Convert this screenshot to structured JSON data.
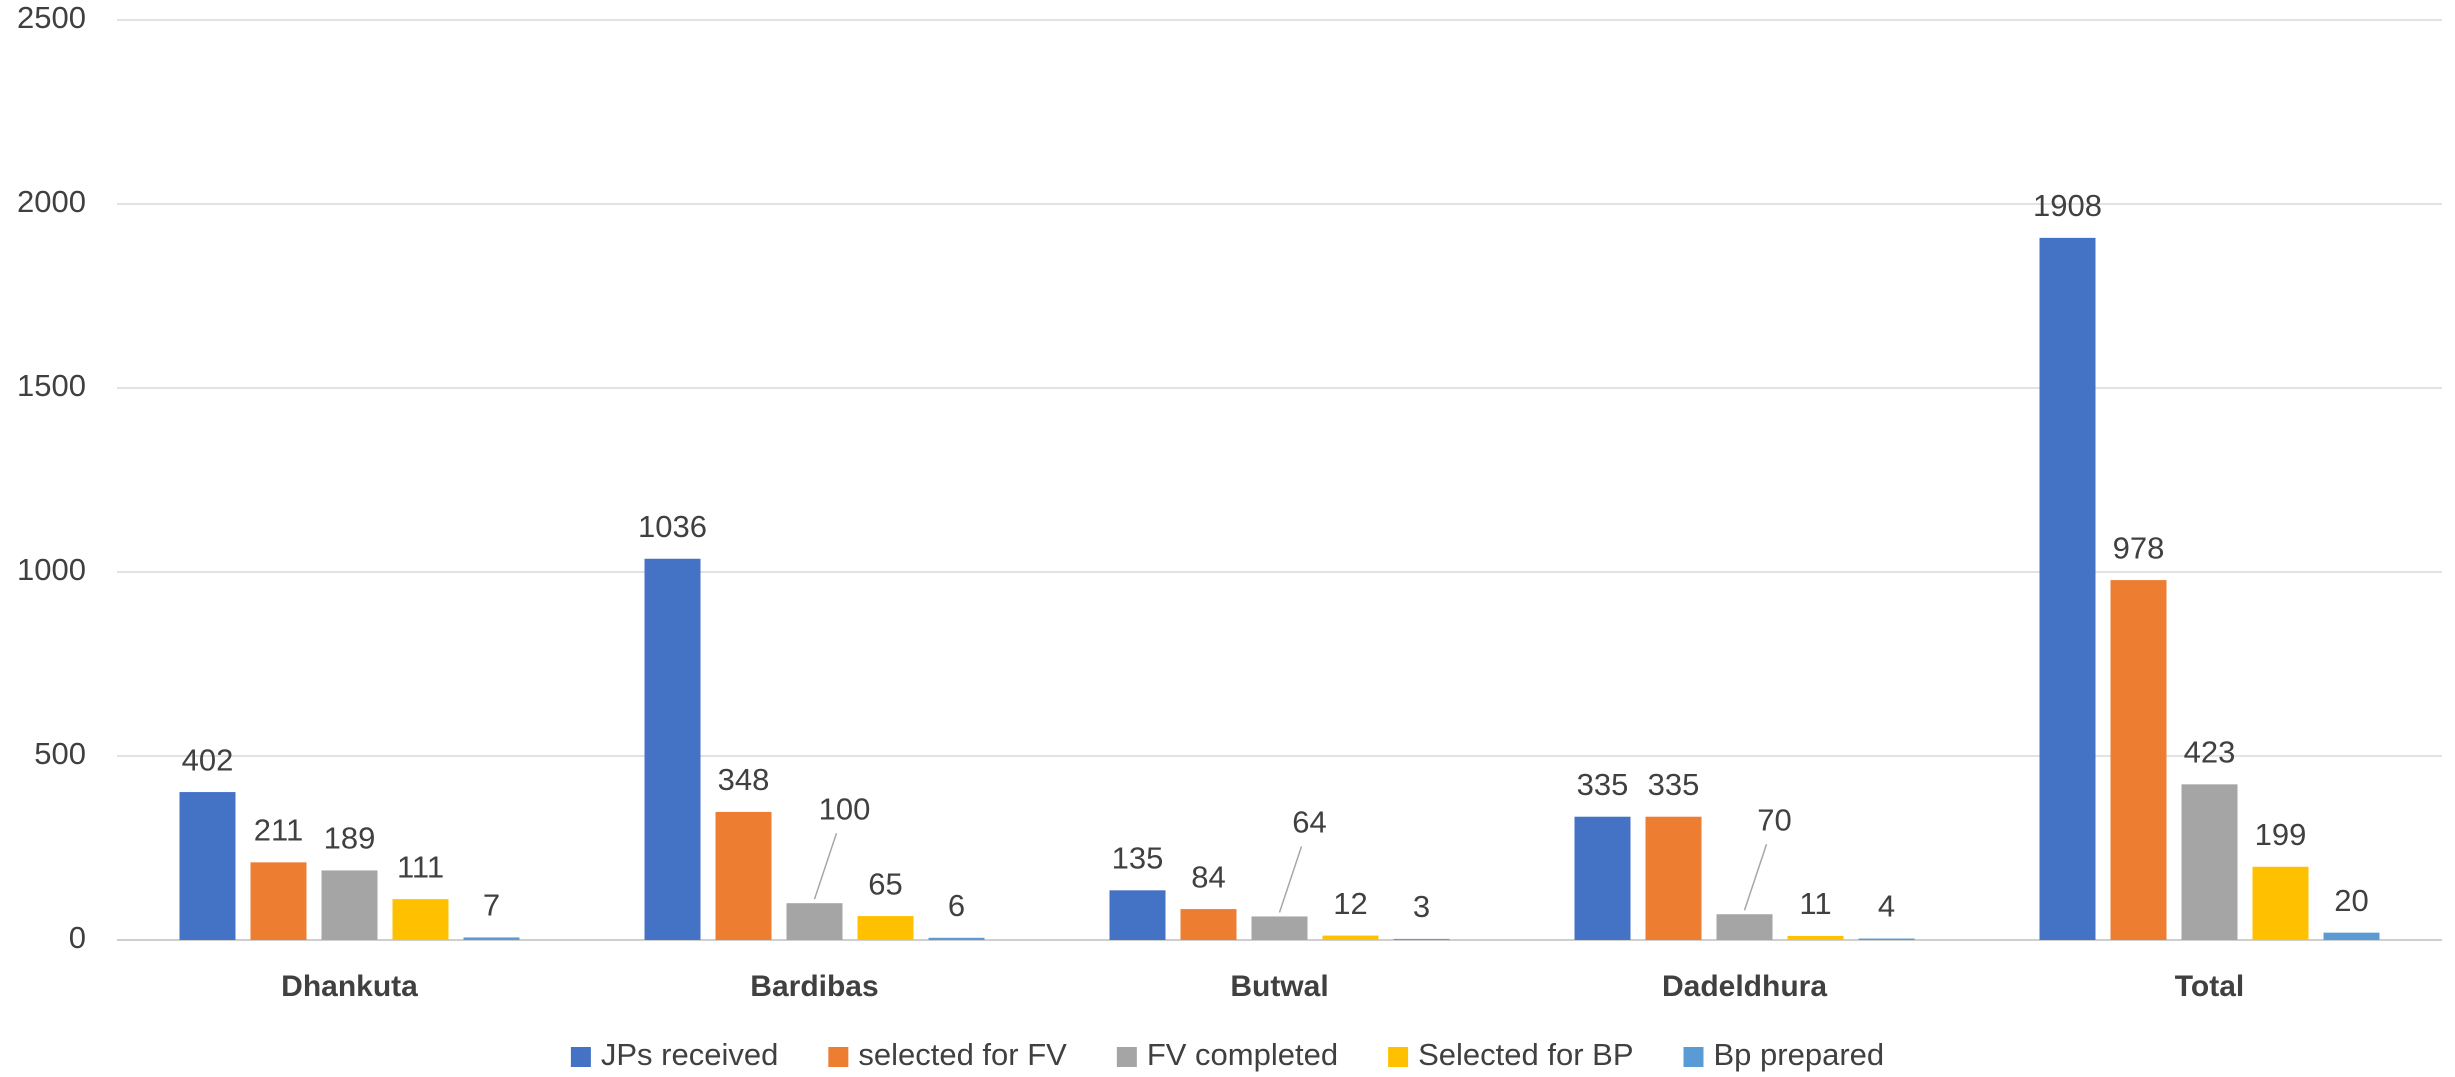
{
  "chart_data": {
    "type": "bar",
    "categories": [
      "Dhankuta",
      "Bardibas",
      "Butwal",
      "Dadeldhura",
      "Total"
    ],
    "series": [
      {
        "name": "JPs received",
        "color": "#4472c4",
        "values": [
          402,
          1036,
          135,
          335,
          1908
        ]
      },
      {
        "name": "selected for FV",
        "color": "#ed7d31",
        "values": [
          211,
          348,
          84,
          335,
          978
        ]
      },
      {
        "name": "FV completed",
        "color": "#a5a5a5",
        "values": [
          189,
          100,
          64,
          70,
          423
        ]
      },
      {
        "name": "Selected for BP",
        "color": "#ffc000",
        "values": [
          111,
          65,
          12,
          11,
          199
        ]
      },
      {
        "name": "Bp prepared",
        "color": "#5b9bd5",
        "values": [
          7,
          6,
          3,
          4,
          20
        ]
      }
    ],
    "ylim": [
      0,
      2500
    ],
    "yticks": [
      0,
      500,
      1000,
      1500,
      2000,
      2500
    ],
    "grid": true,
    "legend": "bottom"
  }
}
